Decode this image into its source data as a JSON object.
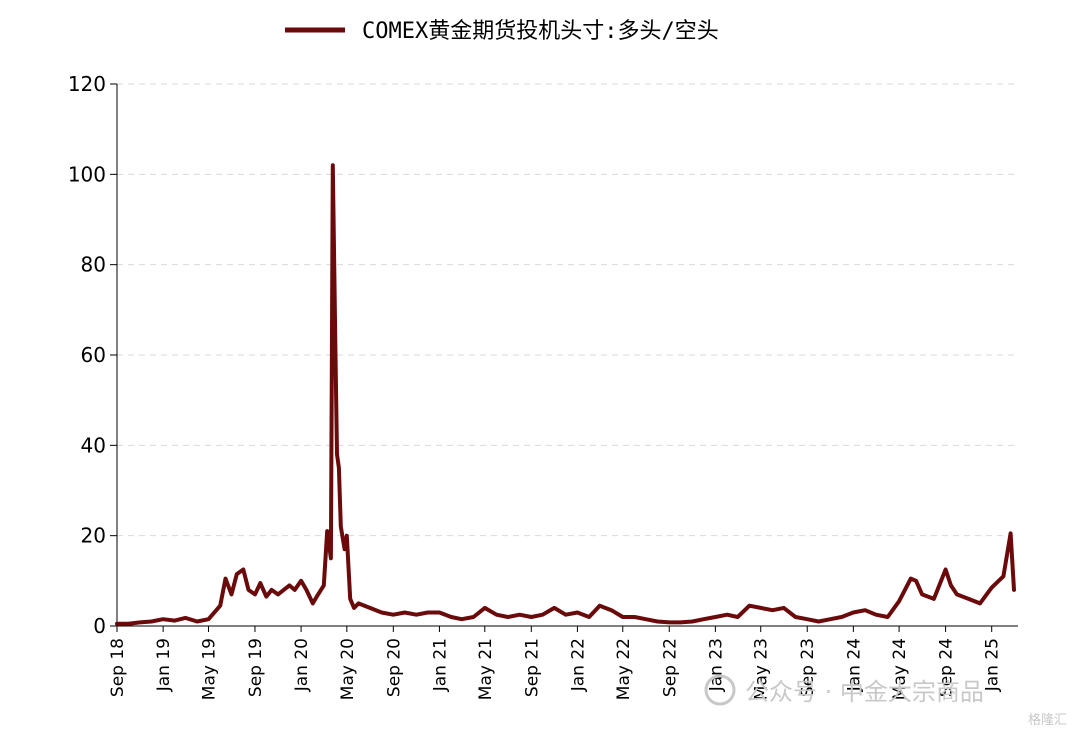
{
  "chart_data": {
    "type": "line",
    "title": "",
    "xlabel": "",
    "ylabel": "",
    "ylim": [
      0,
      120
    ],
    "yticks": [
      "0",
      "20",
      "40",
      "60",
      "80",
      "100",
      "120"
    ],
    "grid": "horizontal-dashed",
    "legend_position": "top-center",
    "xtick_labels": [
      "Sep 18",
      "Jan 19",
      "May 19",
      "Sep 19",
      "Jan 20",
      "May 20",
      "Sep 20",
      "Jan 21",
      "May 21",
      "Sep 21",
      "Jan 22",
      "May 22",
      "Sep 22",
      "Jan 23",
      "May 23",
      "Sep 23",
      "Jan 24",
      "May 24",
      "Sep 24",
      "Jan 25"
    ],
    "series": [
      {
        "name": "COMEX黄金期货投机头寸:多头/空头",
        "color": "#6b0a0a",
        "x": [
          "2018-09",
          "2018-10",
          "2018-11",
          "2018-12",
          "2019-01",
          "2019-02",
          "2019-03",
          "2019-04",
          "2019-05",
          "2019-06",
          "2019-06-15",
          "2019-07",
          "2019-07-15",
          "2019-08",
          "2019-08-15",
          "2019-09",
          "2019-09-15",
          "2019-10",
          "2019-10-15",
          "2019-11",
          "2019-12",
          "2019-12-15",
          "2020-01",
          "2020-01-15",
          "2020-02",
          "2020-02-15",
          "2020-03-01",
          "2020-03-10",
          "2020-03-20",
          "2020-03-25",
          "2020-04-01",
          "2020-04-05",
          "2020-04-10",
          "2020-04-15",
          "2020-04-25",
          "2020-05-01",
          "2020-05-10",
          "2020-05-20",
          "2020-06",
          "2020-07",
          "2020-08",
          "2020-09",
          "2020-10",
          "2020-11",
          "2020-12",
          "2021-01",
          "2021-02",
          "2021-03",
          "2021-04",
          "2021-05",
          "2021-06",
          "2021-07",
          "2021-08",
          "2021-09",
          "2021-10",
          "2021-11",
          "2021-12",
          "2022-01",
          "2022-02",
          "2022-03",
          "2022-04",
          "2022-05",
          "2022-06",
          "2022-07",
          "2022-08",
          "2022-09",
          "2022-10",
          "2022-11",
          "2022-12",
          "2023-01",
          "2023-02",
          "2023-03",
          "2023-04",
          "2023-05",
          "2023-06",
          "2023-07",
          "2023-08",
          "2023-09",
          "2023-10",
          "2023-11",
          "2023-12",
          "2024-01",
          "2024-02",
          "2024-03",
          "2024-04",
          "2024-05",
          "2024-06",
          "2024-06-15",
          "2024-07",
          "2024-08",
          "2024-09",
          "2024-09-15",
          "2024-10",
          "2024-11",
          "2024-12",
          "2025-01",
          "2025-02",
          "2025-02-20",
          "2025-03"
        ],
        "values": [
          0.5,
          0.5,
          0.8,
          1.0,
          1.5,
          1.2,
          1.8,
          1.0,
          1.5,
          4.5,
          10.5,
          7.0,
          11.5,
          12.5,
          8.0,
          7.0,
          9.5,
          6.5,
          8.0,
          7.0,
          9.0,
          8.0,
          10.0,
          8.0,
          5.0,
          7.0,
          9.0,
          21.0,
          15.0,
          102.0,
          60.0,
          38.0,
          35.0,
          22.0,
          17.0,
          20.0,
          6.0,
          4.0,
          5.0,
          4.0,
          3.0,
          2.5,
          3.0,
          2.5,
          3.0,
          3.0,
          2.0,
          1.5,
          2.0,
          4.0,
          2.5,
          2.0,
          2.5,
          2.0,
          2.5,
          4.0,
          2.5,
          3.0,
          2.0,
          4.5,
          3.5,
          2.0,
          2.0,
          1.5,
          1.0,
          0.8,
          0.8,
          1.0,
          1.5,
          2.0,
          2.5,
          2.0,
          4.5,
          4.0,
          3.5,
          4.0,
          2.0,
          1.5,
          1.0,
          1.5,
          2.0,
          3.0,
          3.5,
          2.5,
          2.0,
          5.5,
          10.5,
          10.0,
          7.0,
          6.0,
          12.5,
          9.0,
          7.0,
          6.0,
          5.0,
          8.5,
          11.0,
          20.5,
          8.0
        ]
      }
    ]
  },
  "watermark": {
    "brand_text": "公众号 · 中金大宗商品",
    "corner_text": "格隆汇"
  }
}
